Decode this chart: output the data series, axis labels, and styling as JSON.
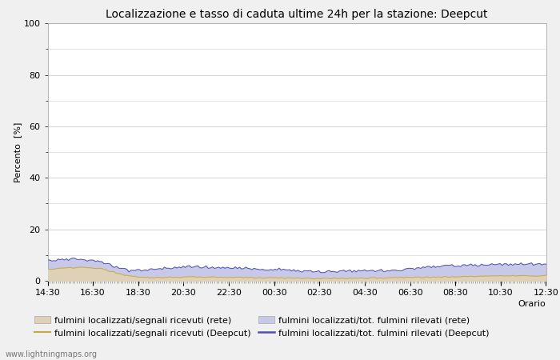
{
  "title": "Localizzazione e tasso di caduta ultime 24h per la stazione: Deepcut",
  "ylabel": "Percento  [%]",
  "xlabel": "Orario",
  "ylim": [
    0,
    100
  ],
  "yticks_major": [
    0,
    20,
    40,
    60,
    80,
    100
  ],
  "yticks_minor": [
    10,
    30,
    50,
    70,
    90
  ],
  "x_labels": [
    "14:30",
    "16:30",
    "18:30",
    "20:30",
    "22:30",
    "00:30",
    "02:30",
    "04:30",
    "06:30",
    "08:30",
    "10:30",
    "12:30"
  ],
  "n_points": 240,
  "watermark": "www.lightningmaps.org",
  "fill_rete_color": "#dfd0b8",
  "fill_deepcut_color": "#c8c8e8",
  "line_rete_color": "#c8a840",
  "line_deepcut_color": "#5050b0",
  "plot_bg_color": "#ffffff",
  "fig_bg_color": "#f0f0f0",
  "grid_color": "#d8d8d8",
  "title_fontsize": 10,
  "axis_label_fontsize": 8,
  "tick_fontsize": 8,
  "legend_fontsize": 8,
  "legend_label_rete_fill": "fulmini localizzati/segnali ricevuti (rete)",
  "legend_label_deepcut_fill": "fulmini localizzati/tot. fulmini rilevati (rete)",
  "legend_label_rete_line": "fulmini localizzati/segnali ricevuti (Deepcut)",
  "legend_label_deepcut_line": "fulmini localizzati/tot. fulmini rilevati (Deepcut)"
}
